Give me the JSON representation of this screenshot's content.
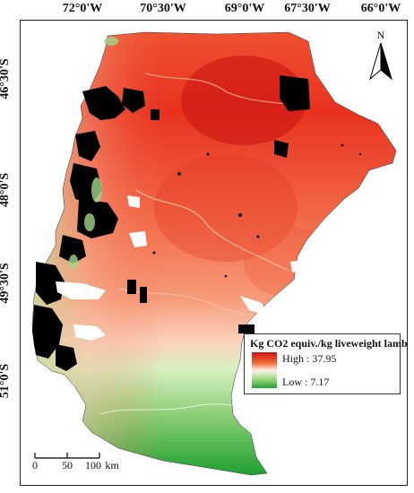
{
  "map": {
    "longitude_labels": [
      "72°0'W",
      "70°30'W",
      "69°0'W",
      "67°30'W",
      "66°0'W"
    ],
    "latitude_labels": [
      "46°30'S",
      "48°0'S",
      "49°30'S",
      "51°0'S"
    ]
  },
  "north_arrow": {
    "letter": "N",
    "icon": "north-arrow-icon"
  },
  "legend": {
    "title": "Kg CO2 equiv./kg liveweight lamb",
    "high_label": "High : 37.95",
    "low_label": "Low : 7.17",
    "high_value": 37.95,
    "low_value": 7.17,
    "colors": {
      "high": "#cc1111",
      "mid": "#fff1e8",
      "low": "#1fa530"
    }
  },
  "scale_bar": {
    "labels": [
      "0",
      "50",
      "100"
    ],
    "unit": "km"
  }
}
